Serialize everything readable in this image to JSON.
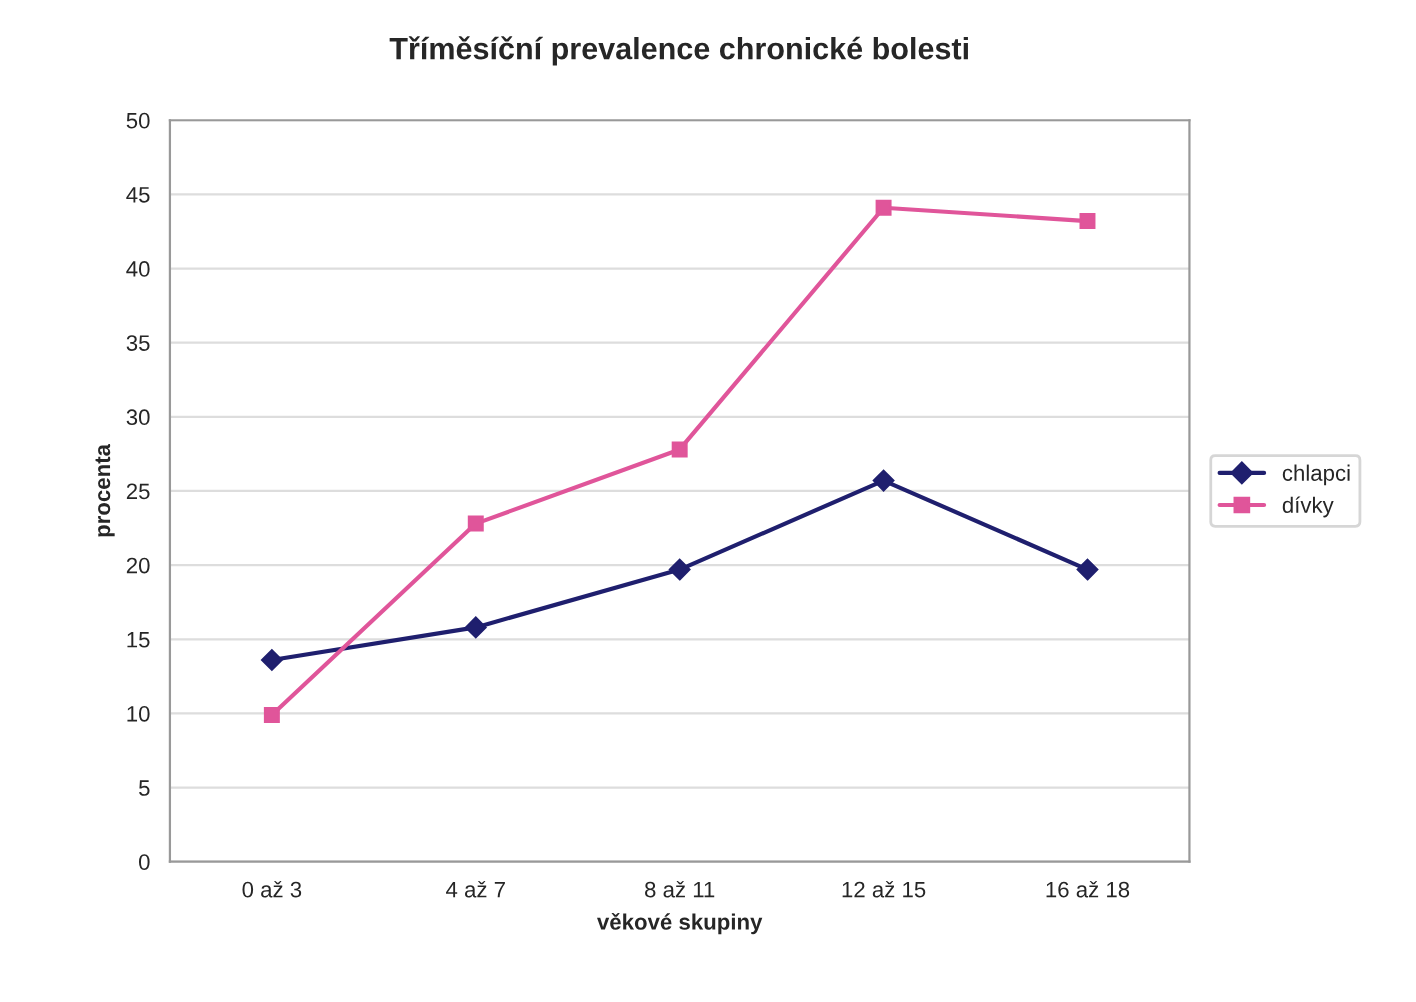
{
  "chart_data": {
    "type": "line",
    "title": "Tříměsíční prevalence chronické bolesti",
    "xlabel": "věkové skupiny",
    "ylabel": "procenta",
    "categories": [
      "0 až 3",
      "4 až 7",
      "8 až 11",
      "12 až 15",
      "16 až 18"
    ],
    "series": [
      {
        "name": "chlapci",
        "color": "#1f1f6e",
        "marker": "diamond",
        "values": [
          13.6,
          15.8,
          19.7,
          25.7,
          19.7
        ]
      },
      {
        "name": "dívky",
        "color": "#e0559a",
        "marker": "square",
        "values": [
          9.9,
          22.8,
          27.8,
          44.1,
          43.2
        ]
      }
    ],
    "ylim": [
      0,
      50
    ],
    "yticks": [
      0,
      5,
      10,
      15,
      20,
      25,
      30,
      35,
      40,
      45,
      50
    ],
    "grid": "y",
    "legend": "right",
    "line_style": "solid"
  }
}
